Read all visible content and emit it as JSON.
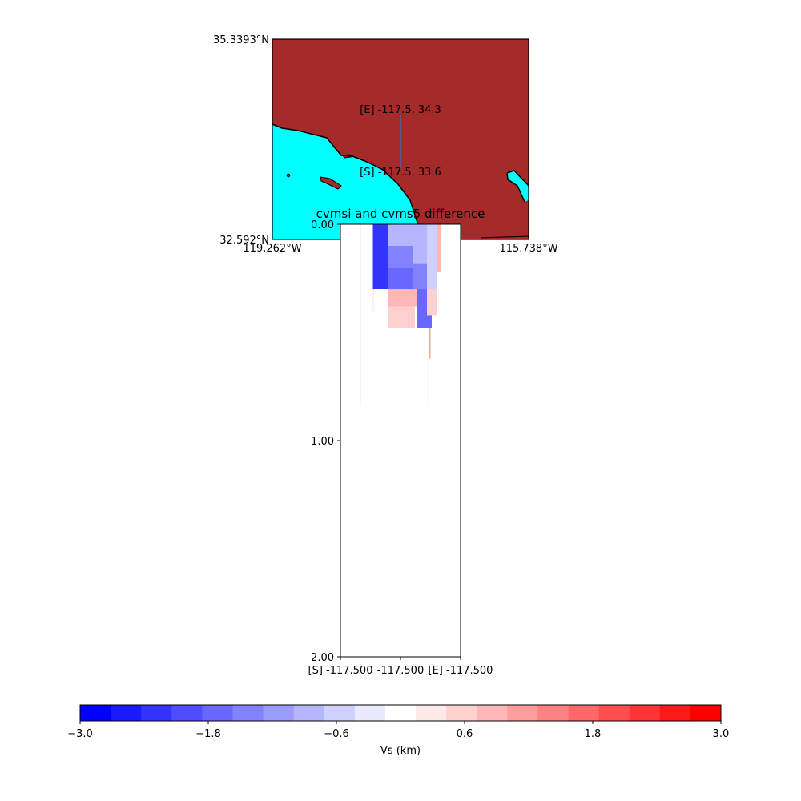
{
  "map": {
    "lat_top": "35.3393°N",
    "lat_bottom": "32.592°N",
    "lon_left": "119.262°W",
    "lon_right": "115.738°W",
    "end_label": "[E] -117.5, 34.3",
    "start_label": "[S] -117.5, 33.6",
    "land_color": "#a52a2a",
    "water_color": "#00ffff",
    "path_color": "#5a5a8a"
  },
  "chart_data": {
    "type": "heatmap",
    "title": "cvmsi and cvms5 difference",
    "ylim": [
      2.0,
      0.0
    ],
    "y_ticks": [
      "0.00",
      "1.00",
      "2.00"
    ],
    "x_ticks": [
      "[S] -117.500",
      "-117.500",
      "[E] -117.500"
    ],
    "cells": [
      {
        "x0": 0.27,
        "x1": 0.4,
        "y0": 0.0,
        "y1": 0.3,
        "v": -2.4
      },
      {
        "x0": 0.4,
        "x1": 0.6,
        "y0": 0.0,
        "y1": 0.1,
        "v": -1.0
      },
      {
        "x0": 0.4,
        "x1": 0.6,
        "y0": 0.1,
        "y1": 0.2,
        "v": -1.3
      },
      {
        "x0": 0.4,
        "x1": 0.6,
        "y0": 0.2,
        "y1": 0.3,
        "v": -1.7
      },
      {
        "x0": 0.6,
        "x1": 0.72,
        "y0": 0.0,
        "y1": 0.18,
        "v": -0.9
      },
      {
        "x0": 0.6,
        "x1": 0.72,
        "y0": 0.18,
        "y1": 0.3,
        "v": -1.4
      },
      {
        "x0": 0.72,
        "x1": 0.8,
        "y0": 0.0,
        "y1": 0.3,
        "v": -0.6
      },
      {
        "x0": 0.8,
        "x1": 0.84,
        "y0": 0.0,
        "y1": 0.22,
        "v": 0.9
      },
      {
        "x0": 0.4,
        "x1": 0.62,
        "y0": 0.3,
        "y1": 0.38,
        "v": 0.8
      },
      {
        "x0": 0.4,
        "x1": 0.62,
        "y0": 0.38,
        "y1": 0.48,
        "v": 0.5
      },
      {
        "x0": 0.62,
        "x1": 0.72,
        "y0": 0.3,
        "y1": 0.38,
        "v": 0.9
      },
      {
        "x0": 0.64,
        "x1": 0.76,
        "y0": 0.3,
        "y1": 0.48,
        "v": -1.6
      },
      {
        "x0": 0.72,
        "x1": 0.8,
        "y0": 0.3,
        "y1": 0.42,
        "v": 0.6
      },
      {
        "x0": 0.74,
        "x1": 0.75,
        "y0": 0.48,
        "y1": 0.62,
        "v": 1.0
      },
      {
        "x0": 0.73,
        "x1": 0.74,
        "y0": 0.62,
        "y1": 0.84,
        "v": 0.4
      },
      {
        "x0": 0.16,
        "x1": 0.17,
        "y0": 0.0,
        "y1": 0.84,
        "v": -0.3
      },
      {
        "x0": 0.27,
        "x1": 0.28,
        "y0": 0.3,
        "y1": 0.4,
        "v": 0.3
      }
    ],
    "colorbar": {
      "min": -3.0,
      "max": 3.0,
      "ticks": [
        "-3.0",
        "-1.8",
        "-0.6",
        "0.6",
        "1.8",
        "3.0"
      ],
      "label": "Vs (km)",
      "colors": [
        "#0000ff",
        "#1a1aff",
        "#3434ff",
        "#4e4eff",
        "#6868ff",
        "#8282ff",
        "#9c9cff",
        "#b6b6ff",
        "#d0d0ff",
        "#eaeaff",
        "#ffffff",
        "#ffeaea",
        "#ffd0d0",
        "#ffb6b6",
        "#ff9c9c",
        "#ff8282",
        "#ff6868",
        "#ff4e4e",
        "#ff3434",
        "#ff1a1a",
        "#ff0000"
      ]
    }
  }
}
